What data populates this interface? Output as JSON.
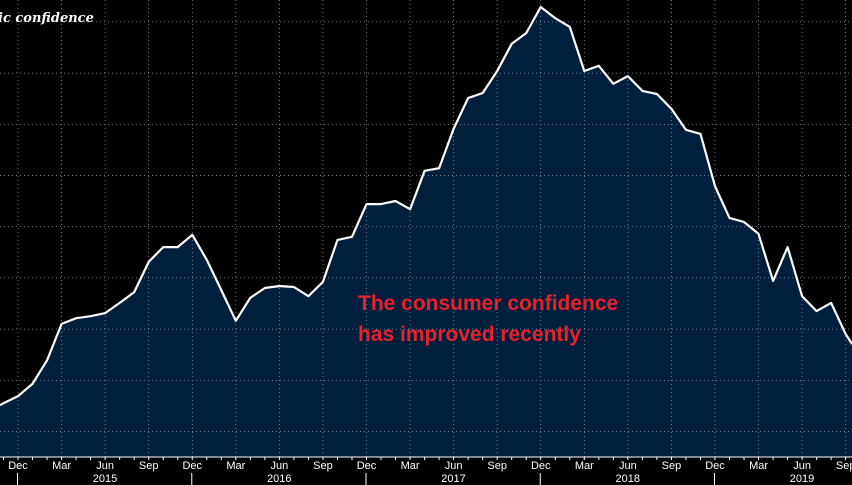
{
  "chart_data": {
    "type": "area",
    "title": "ic confidence",
    "xlabel": "",
    "ylabel": "",
    "x_start": "2014-11",
    "x_step": "month",
    "x_tick_labels": [
      "Dec",
      "Mar",
      "Jun",
      "Sep",
      "Dec",
      "Mar",
      "Jun",
      "Sep",
      "Dec",
      "Mar",
      "Jun",
      "Sep",
      "Dec",
      "Mar",
      "Jun",
      "Sep",
      "Dec",
      "Mar",
      "Jun",
      "Sep"
    ],
    "year_labels": [
      "2015",
      "2016",
      "2017",
      "2018",
      "2019"
    ],
    "y_units": "relative (gridline steps, no printed y ticks)",
    "ylim": [
      0,
      8.9
    ],
    "grid": true,
    "values": [
      1.05,
      1.19,
      1.43,
      1.89,
      2.6,
      2.71,
      2.75,
      2.81,
      3.01,
      3.22,
      3.81,
      4.1,
      4.1,
      4.34,
      3.85,
      3.26,
      2.66,
      3.11,
      3.3,
      3.34,
      3.32,
      3.14,
      3.42,
      4.24,
      4.3,
      4.94,
      4.94,
      5.0,
      4.84,
      5.59,
      5.64,
      6.41,
      7.01,
      7.11,
      7.54,
      8.07,
      8.28,
      8.79,
      8.57,
      8.4,
      7.54,
      7.64,
      7.29,
      7.44,
      7.15,
      7.09,
      6.8,
      6.39,
      6.31,
      5.29,
      4.67,
      4.59,
      4.36,
      3.44,
      4.1,
      3.14,
      2.85,
      3.01,
      2.4
    ],
    "colors": {
      "line": "#ffffff",
      "fill": "#001f3d",
      "background": "#000000",
      "annotation": "#e8202a"
    },
    "annotation": [
      "The consumer confidence",
      "has improved recently"
    ]
  }
}
